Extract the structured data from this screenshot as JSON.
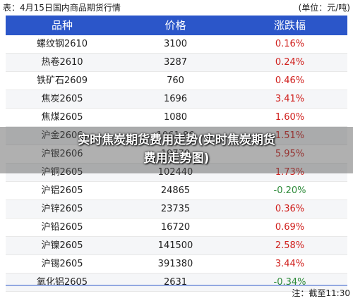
{
  "caption": {
    "title": "表：4月15日国内商品期货行情",
    "unit": "(单位：元/吨)"
  },
  "table": {
    "headers": [
      "品种",
      "价格",
      "涨跌幅"
    ],
    "rows": [
      {
        "name": "螺纹钢2610",
        "price": "3100",
        "change": "0.16%",
        "trend": "up"
      },
      {
        "name": "热卷2610",
        "price": "3287",
        "change": "0.24%",
        "trend": "up"
      },
      {
        "name": "铁矿石2609",
        "price": "760",
        "change": "0.46%",
        "trend": "up"
      },
      {
        "name": "焦炭2605",
        "price": "1696",
        "change": "3.41%",
        "trend": "up"
      },
      {
        "name": "焦煤2605",
        "price": "1080",
        "change": "1.60%",
        "trend": "up"
      },
      {
        "name": "沪金2606",
        "price": "1061.86",
        "change": "1.51%",
        "trend": "up"
      },
      {
        "name": "沪银2606",
        "price": "19770",
        "change": "5.95%",
        "trend": "up"
      },
      {
        "name": "沪铜2605",
        "price": "102440",
        "change": "1.73%",
        "trend": "up"
      },
      {
        "name": "沪铝2605",
        "price": "24865",
        "change": "-0.20%",
        "trend": "down"
      },
      {
        "name": "沪锌2605",
        "price": "23735",
        "change": "0.36%",
        "trend": "up"
      },
      {
        "name": "沪铅2605",
        "price": "16720",
        "change": "0.69%",
        "trend": "up"
      },
      {
        "name": "沪镍2605",
        "price": "141500",
        "change": "2.58%",
        "trend": "up"
      },
      {
        "name": "沪锡2605",
        "price": "391380",
        "change": "3.44%",
        "trend": "up"
      },
      {
        "name": "氧化铝2605",
        "price": "2631",
        "change": "-0.34%",
        "trend": "down"
      }
    ]
  },
  "footnote": "注：截至11:30",
  "overlay": {
    "line1": "实时焦炭期货费用走势(实时焦炭期货",
    "line2": "费用走势图)"
  },
  "colors": {
    "header_bg": "#2b56c9",
    "up": "#d0201d",
    "down": "#2e8b3a"
  }
}
